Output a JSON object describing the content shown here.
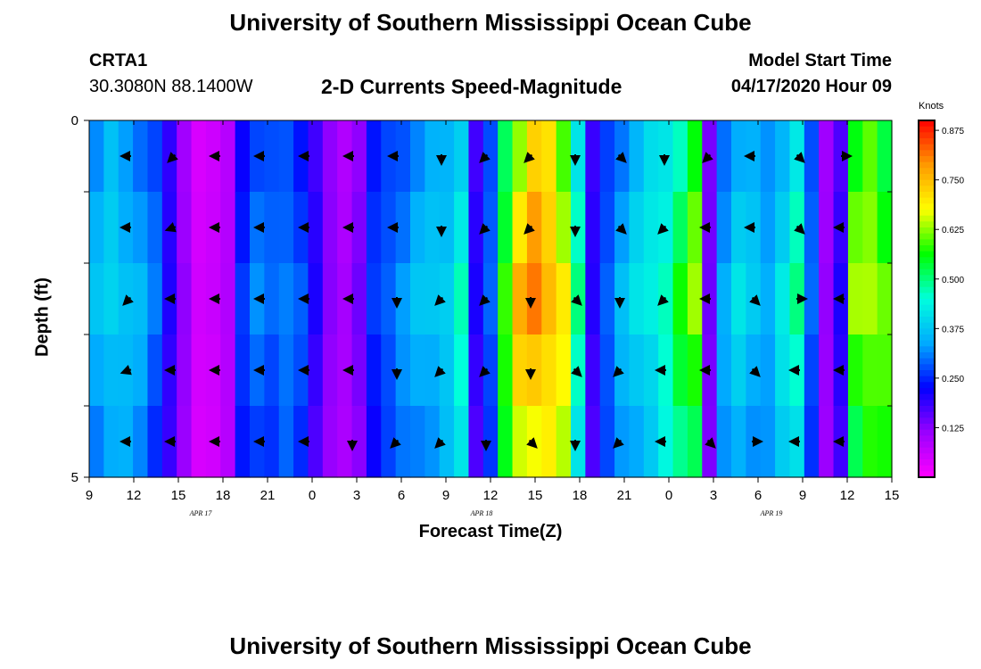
{
  "header": {
    "title": "University of Southern Mississippi Ocean Cube",
    "footer_title": "University of Southern Mississippi Ocean Cube",
    "station_id": "CRTA1",
    "station_coords": "30.3080N 88.1400W",
    "model_label": "Model Start Time",
    "model_time": "04/17/2020 Hour 09"
  },
  "colors": {
    "scale": [
      "#ff00ff",
      "#9900ff",
      "#0000ff",
      "#00aaff",
      "#00ffdd",
      "#00ff00",
      "#ffff00",
      "#ff9900",
      "#ff0000"
    ]
  },
  "chart_data": {
    "type": "heatmap",
    "title": "2-D Currents Speed-Magnitude",
    "xlabel": "Forecast Time(Z)",
    "ylabel": "Depth (ft)",
    "ylim": [
      0,
      5
    ],
    "y_ticks": [
      "0",
      "5"
    ],
    "x_ticks": [
      "9",
      "12",
      "15",
      "18",
      "21",
      "0",
      "3",
      "6",
      "9",
      "12",
      "15",
      "18",
      "21",
      "0",
      "3",
      "6",
      "9",
      "12",
      "15"
    ],
    "date_labels": [
      {
        "label": "APR 17",
        "tick_index": 2.5
      },
      {
        "label": "APR 18",
        "tick_index": 8.8
      },
      {
        "label": "APR 19",
        "tick_index": 15.3
      }
    ],
    "legend": {
      "unit": "Knots",
      "range": [
        0,
        0.9
      ],
      "ticks": [
        "0.125",
        "0.250",
        "0.375",
        "0.500",
        "0.625",
        "0.750",
        "0.875"
      ],
      "tick_values": [
        0.125,
        0.25,
        0.375,
        0.5,
        0.625,
        0.75,
        0.875
      ]
    },
    "hours": [
      9,
      10,
      11,
      12,
      13,
      14,
      15,
      16,
      17,
      18,
      19,
      20,
      21,
      22,
      23,
      0,
      1,
      2,
      3,
      4,
      5,
      6,
      7,
      8,
      9,
      10,
      11,
      12,
      13,
      14,
      15,
      16,
      17,
      18,
      19,
      20,
      21,
      22,
      23,
      0,
      1,
      2,
      3,
      4,
      5,
      6,
      7,
      8,
      9,
      10,
      11,
      12,
      13,
      14,
      15
    ],
    "depth_levels": [
      "0.5",
      "1.5",
      "2.5",
      "3.5",
      "4.5"
    ],
    "speed_profile_knots": [
      0.36,
      0.4,
      0.38,
      0.35,
      0.3,
      0.21,
      0.12,
      0.05,
      0.06,
      0.09,
      0.26,
      0.31,
      0.3,
      0.32,
      0.28,
      0.2,
      0.13,
      0.1,
      0.14,
      0.26,
      0.3,
      0.33,
      0.36,
      0.38,
      0.4,
      0.46,
      0.2,
      0.3,
      0.6,
      0.74,
      0.8,
      0.78,
      0.7,
      0.48,
      0.2,
      0.3,
      0.36,
      0.4,
      0.44,
      0.48,
      0.55,
      0.62,
      0.15,
      0.35,
      0.4,
      0.38,
      0.36,
      0.42,
      0.48,
      0.3,
      0.12,
      0.2,
      0.62,
      0.66,
      0.62
    ],
    "vector_angles_deg": [
      180,
      180,
      135,
      160,
      180,
      180,
      180,
      180,
      180,
      180,
      180,
      180,
      180,
      180,
      90,
      90,
      135,
      135,
      135,
      135,
      90,
      90,
      45,
      45,
      90,
      135,
      135,
      180,
      180,
      180,
      45,
      45,
      0,
      180,
      180
    ]
  }
}
